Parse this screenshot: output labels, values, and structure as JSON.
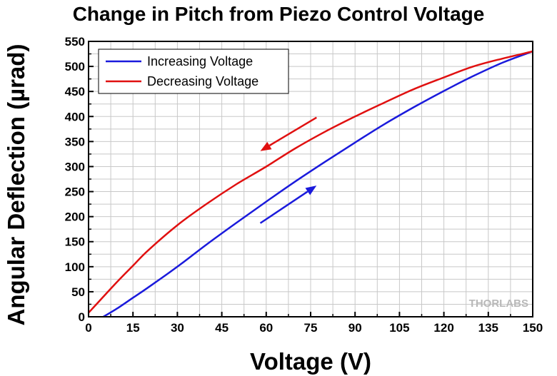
{
  "chart_data": {
    "type": "line",
    "title": "Change in Pitch from Piezo Control Voltage",
    "xlabel": "Voltage (V)",
    "ylabel": "Angular Deflection (µrad)",
    "xlim": [
      0,
      150
    ],
    "ylim": [
      0,
      550
    ],
    "x_ticks": [
      0,
      15,
      30,
      45,
      60,
      75,
      90,
      105,
      120,
      135,
      150
    ],
    "y_ticks": [
      0,
      50,
      100,
      150,
      200,
      250,
      300,
      350,
      400,
      450,
      500,
      550
    ],
    "grid": true,
    "legend_position": "top-left",
    "series": [
      {
        "name": "Increasing Voltage",
        "color": "#1a1adc",
        "x": [
          5,
          10,
          15,
          20,
          30,
          40,
          50,
          60,
          70,
          80,
          90,
          100,
          110,
          120,
          130,
          140,
          150
        ],
        "y": [
          0,
          18,
          38,
          58,
          100,
          145,
          188,
          230,
          271,
          310,
          348,
          385,
          419,
          451,
          481,
          508,
          530
        ]
      },
      {
        "name": "Decreasing Voltage",
        "color": "#e01010",
        "x": [
          0,
          5,
          10,
          15,
          20,
          30,
          40,
          50,
          60,
          70,
          80,
          90,
          100,
          110,
          120,
          130,
          140,
          150
        ],
        "y": [
          8,
          40,
          72,
          102,
          132,
          183,
          226,
          265,
          300,
          337,
          370,
          400,
          428,
          455,
          478,
          500,
          516,
          530
        ]
      }
    ],
    "annotations": [
      {
        "type": "arrow",
        "color": "#e01010",
        "from": [
          77,
          398
        ],
        "to": [
          58,
          331
        ]
      },
      {
        "type": "arrow",
        "color": "#1a1adc",
        "from": [
          58,
          187
        ],
        "to": [
          77,
          262
        ]
      }
    ]
  },
  "watermark": "THORLABS",
  "colors": {
    "grid": "#c8c8c8",
    "axis": "#000000"
  }
}
